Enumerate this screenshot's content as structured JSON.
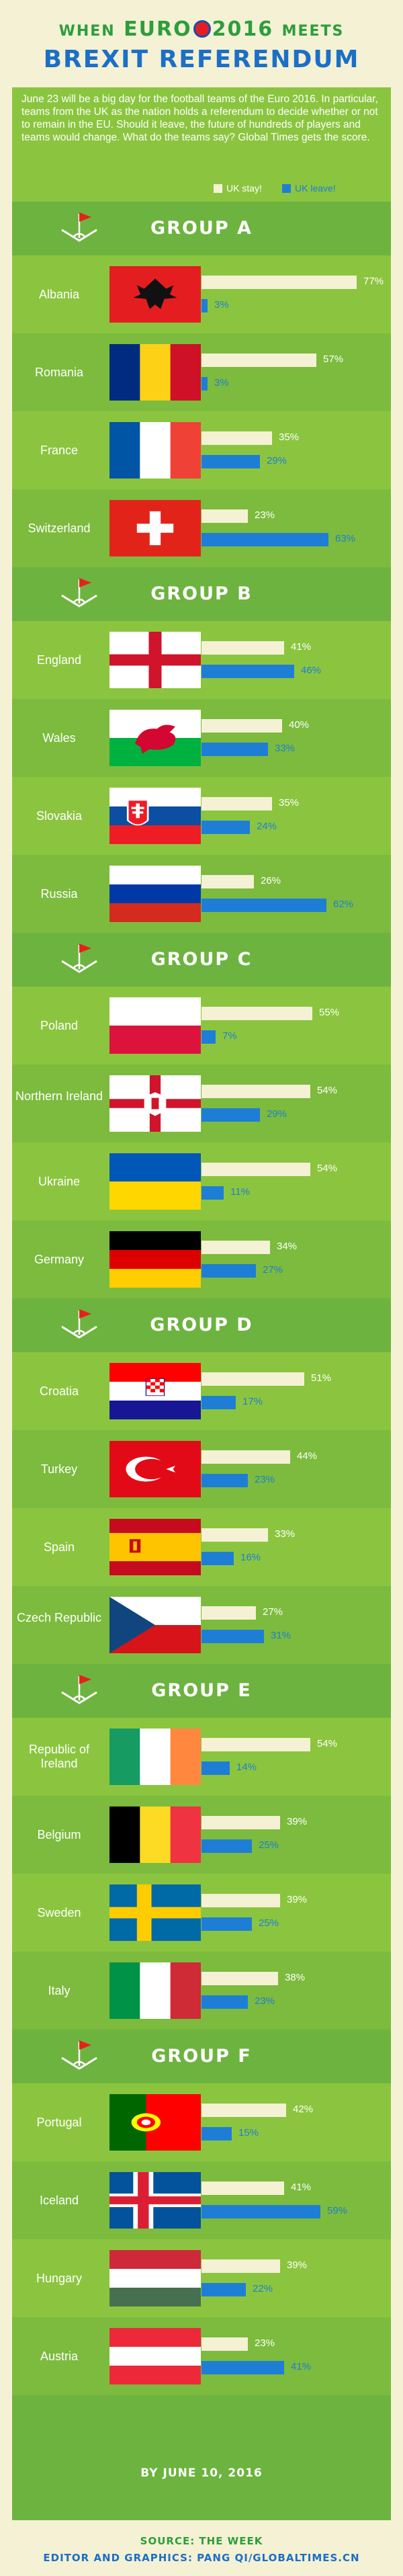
{
  "header": {
    "pre": "WHEN",
    "euro": "EURO",
    "year": "2016",
    "post": "MEETS",
    "line2": "BREXIT REFERENDUM"
  },
  "intro": "June 23 will be a big day for the football teams of the Euro 2016. In particular, teams from the UK as the nation holds a referendum to decide whether or not to remain in the EU. Should it leave, the future of hundreds of players and teams would change. What do the teams say? Global Times gets the score.",
  "colors": {
    "field": "#8bc53f",
    "stripe_dark": "#6db33f",
    "stay": "#f4f1d4",
    "leave": "#1e7ed6",
    "title_green": "#2c9e3c",
    "title_blue": "#1c6fc6"
  },
  "chart_data": {
    "type": "bar",
    "orientation": "horizontal",
    "title": "WHEN EURO 2016 MEETS BREXIT REFERENDUM",
    "legend": [
      "UK stay!",
      "UK leave!"
    ],
    "legend_placement": "top-right",
    "unit": "%",
    "xlim": [
      0,
      100
    ],
    "groups": [
      {
        "name": "GROUP A",
        "teams": [
          {
            "country": "Albania",
            "flag": "albania-flag",
            "stay": 77,
            "leave": 3
          },
          {
            "country": "Romania",
            "flag": "romania-flag",
            "stay": 57,
            "leave": 3
          },
          {
            "country": "France",
            "flag": "france-flag",
            "stay": 35,
            "leave": 29
          },
          {
            "country": "Switzerland",
            "flag": "switzerland-flag",
            "stay": 23,
            "leave": 63
          }
        ]
      },
      {
        "name": "GROUP B",
        "teams": [
          {
            "country": "England",
            "flag": "england-flag",
            "stay": 41,
            "leave": 46
          },
          {
            "country": "Wales",
            "flag": "wales-flag",
            "stay": 40,
            "leave": 33
          },
          {
            "country": "Slovakia",
            "flag": "slovakia-flag",
            "stay": 35,
            "leave": 24
          },
          {
            "country": "Russia",
            "flag": "russia-flag",
            "stay": 26,
            "leave": 62
          }
        ]
      },
      {
        "name": "GROUP C",
        "teams": [
          {
            "country": "Poland",
            "flag": "poland-flag",
            "stay": 55,
            "leave": 7
          },
          {
            "country": "Northern Ireland",
            "flag": "northern-ireland-flag",
            "stay": 54,
            "leave": 29
          },
          {
            "country": "Ukraine",
            "flag": "ukraine-flag",
            "stay": 54,
            "leave": 11
          },
          {
            "country": "Germany",
            "flag": "germany-flag",
            "stay": 34,
            "leave": 27
          }
        ]
      },
      {
        "name": "GROUP D",
        "teams": [
          {
            "country": "Croatia",
            "flag": "croatia-flag",
            "stay": 51,
            "leave": 17
          },
          {
            "country": "Turkey",
            "flag": "turkey-flag",
            "stay": 44,
            "leave": 23
          },
          {
            "country": "Spain",
            "flag": "spain-flag",
            "stay": 33,
            "leave": 16
          },
          {
            "country": "Czech Republic",
            "flag": "czech-republic-flag",
            "stay": 27,
            "leave": 31
          }
        ]
      },
      {
        "name": "GROUP E",
        "teams": [
          {
            "country": "Republic of Ireland",
            "flag": "ireland-flag",
            "stay": 54,
            "leave": 14
          },
          {
            "country": "Belgium",
            "flag": "belgium-flag",
            "stay": 39,
            "leave": 25
          },
          {
            "country": "Sweden",
            "flag": "sweden-flag",
            "stay": 39,
            "leave": 25
          },
          {
            "country": "Italy",
            "flag": "italy-flag",
            "stay": 38,
            "leave": 23
          }
        ]
      },
      {
        "name": "GROUP F",
        "teams": [
          {
            "country": "Portugal",
            "flag": "portugal-flag",
            "stay": 42,
            "leave": 15
          },
          {
            "country": "Iceland",
            "flag": "iceland-flag",
            "stay": 41,
            "leave": 59
          },
          {
            "country": "Hungary",
            "flag": "hungary-flag",
            "stay": 39,
            "leave": 22
          },
          {
            "country": "Austria",
            "flag": "austria-flag",
            "stay": 23,
            "leave": 41
          }
        ]
      }
    ]
  },
  "byline": "BY JUNE 10, 2016",
  "source": "SOURCE: THE WEEK",
  "credits": "EDITOR AND GRAPHICS: PANG QI/GLOBALTIMES.CN"
}
